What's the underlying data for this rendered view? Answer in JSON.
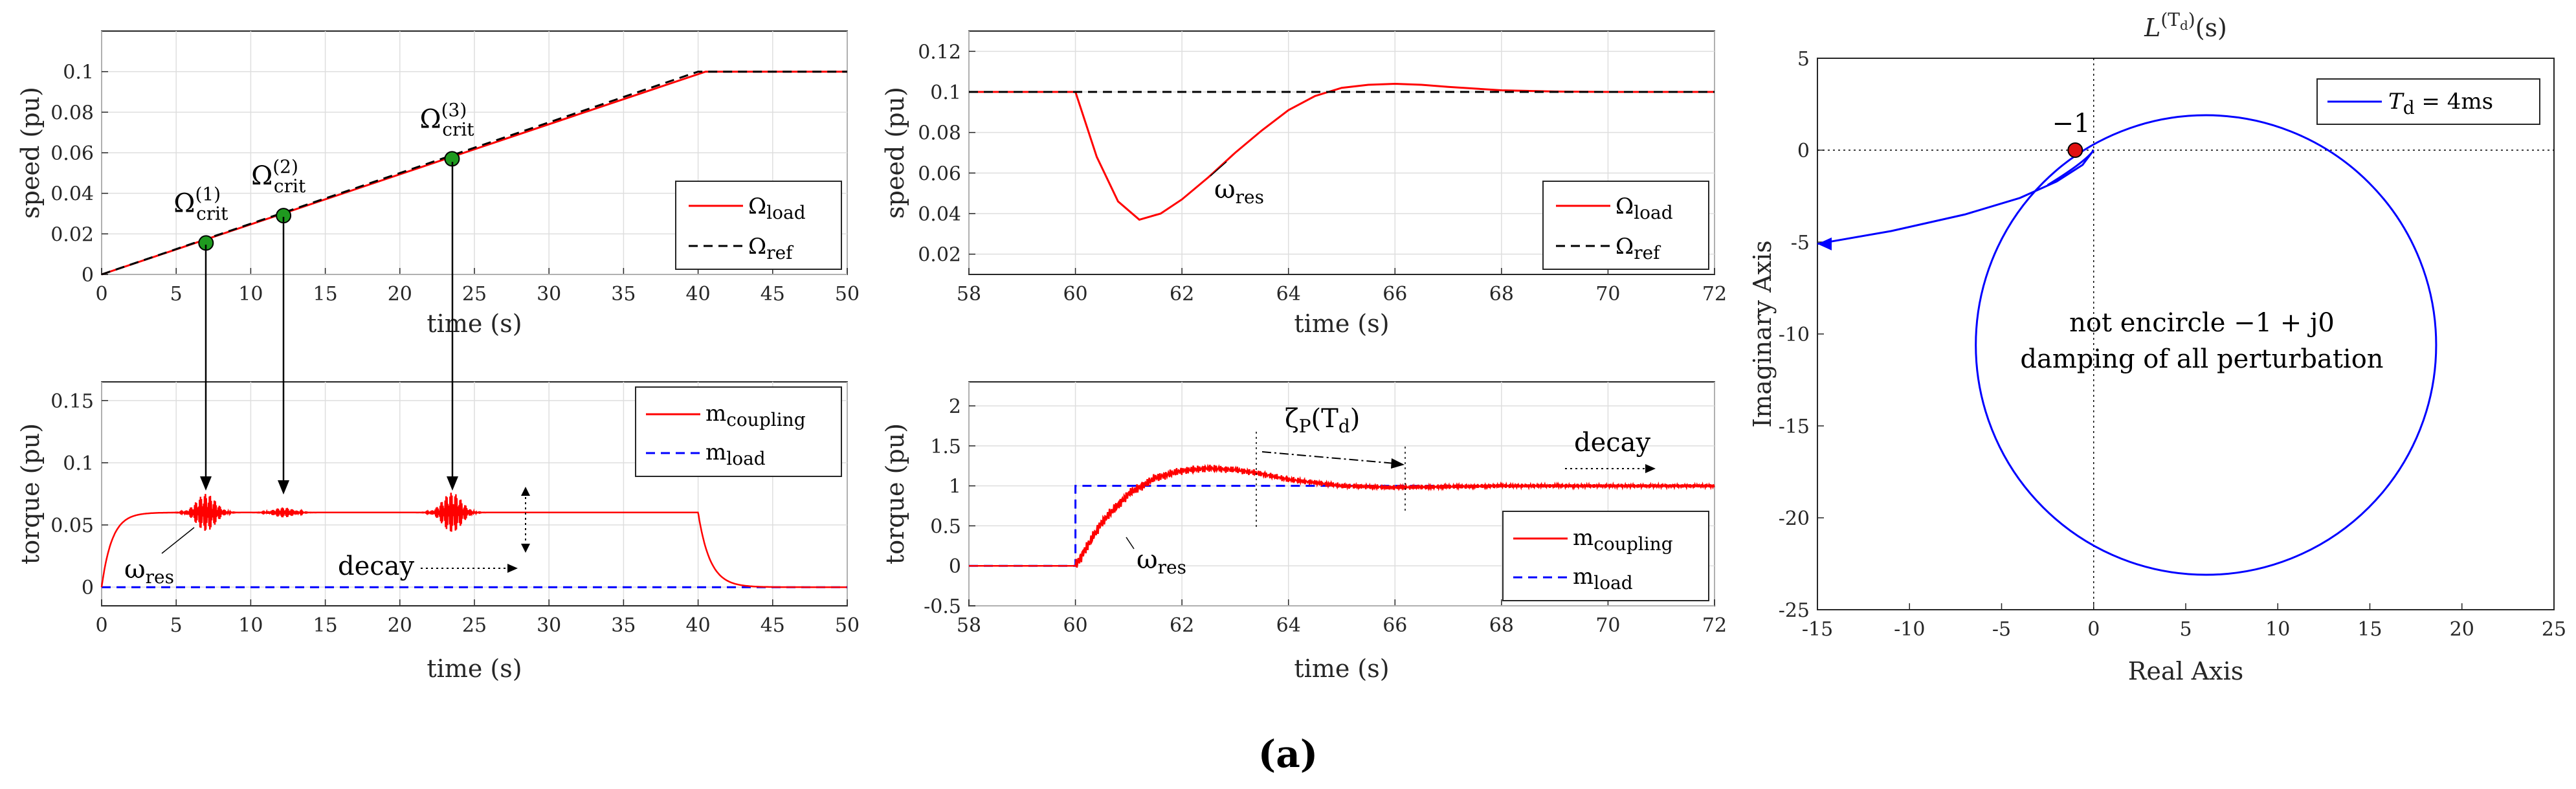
{
  "figure": {
    "caption": "(a)"
  },
  "chart_data": [
    {
      "id": "p1",
      "type": "line",
      "xlabel": "time (s)",
      "ylabel": "speed (pu)",
      "xlim": [
        0,
        50
      ],
      "ylim": [
        0,
        0.12
      ],
      "xticks": [
        0,
        5,
        10,
        15,
        20,
        25,
        30,
        35,
        40,
        45,
        50
      ],
      "yticks": [
        0,
        0.02,
        0.04,
        0.06,
        0.08,
        0.1
      ],
      "grid": true,
      "legend_position": "lower-right",
      "series": [
        {
          "name": "Ω_load",
          "color": "#ff0000",
          "style": "solid",
          "x": [
            0,
            40.5,
            50
          ],
          "y": [
            0,
            0.1,
            0.1
          ]
        },
        {
          "name": "Ω_ref",
          "color": "#000000",
          "style": "dashed",
          "x": [
            0,
            40,
            50
          ],
          "y": [
            0,
            0.1,
            0.1
          ]
        }
      ],
      "points": [
        {
          "x": 7,
          "y": 0.0155,
          "label": "Ω",
          "sub": "crit",
          "sup": "(1)"
        },
        {
          "x": 12.2,
          "y": 0.029,
          "label": "Ω",
          "sub": "crit",
          "sup": "(2)"
        },
        {
          "x": 23.5,
          "y": 0.057,
          "label": "Ω",
          "sub": "crit",
          "sup": "(3)"
        }
      ],
      "marker_color": "#1f9a1f"
    },
    {
      "id": "p2",
      "type": "line",
      "xlabel": "time (s)",
      "ylabel": "torque (pu)",
      "xlim": [
        0,
        50
      ],
      "ylim": [
        -0.015,
        0.165
      ],
      "xticks": [
        0,
        5,
        10,
        15,
        20,
        25,
        30,
        35,
        40,
        45,
        50
      ],
      "yticks": [
        0,
        0.05,
        0.1,
        0.15
      ],
      "grid": true,
      "legend_position": "top-right",
      "series": [
        {
          "name": "m_coupling",
          "color": "#ff0000",
          "style": "solid",
          "steady": 0.06,
          "bursts": [
            {
              "t": 7,
              "amp": 0.015
            },
            {
              "t": 12.2,
              "amp": 0.004
            },
            {
              "t": 23.5,
              "amp": 0.016
            }
          ]
        },
        {
          "name": "m_load",
          "color": "#0000ff",
          "style": "dashed",
          "x": [
            0,
            50
          ],
          "y": [
            0,
            0
          ]
        }
      ],
      "annotations": {
        "omega_res": "ω",
        "omega_res_sub": "res",
        "decay": "decay"
      }
    },
    {
      "id": "p3",
      "type": "line",
      "xlabel": "time (s)",
      "ylabel": "speed (pu)",
      "xlim": [
        58,
        72
      ],
      "ylim": [
        0.01,
        0.13
      ],
      "xticks": [
        58,
        60,
        62,
        64,
        66,
        68,
        70,
        72
      ],
      "yticks": [
        0.02,
        0.04,
        0.06,
        0.08,
        0.1,
        0.12
      ],
      "grid": true,
      "legend_position": "lower-right",
      "series": [
        {
          "name": "Ω_load",
          "color": "#ff0000",
          "style": "solid",
          "x": [
            58,
            60,
            60.4,
            60.8,
            61.2,
            61.6,
            62,
            62.5,
            63,
            63.5,
            64,
            64.5,
            65,
            65.5,
            66,
            66.5,
            67,
            68,
            69,
            70,
            72
          ],
          "y": [
            0.1,
            0.1,
            0.068,
            0.046,
            0.037,
            0.04,
            0.047,
            0.058,
            0.07,
            0.081,
            0.091,
            0.098,
            0.102,
            0.1035,
            0.104,
            0.1035,
            0.1025,
            0.1008,
            0.1002,
            0.1,
            0.1
          ]
        },
        {
          "name": "Ω_ref",
          "color": "#000000",
          "style": "dashed",
          "x": [
            58,
            72
          ],
          "y": [
            0.1,
            0.1
          ]
        }
      ],
      "annotations": {
        "omega_res": "ω",
        "omega_res_sub": "res"
      }
    },
    {
      "id": "p4",
      "type": "line",
      "xlabel": "time (s)",
      "ylabel": "torque (pu)",
      "xlim": [
        58,
        72
      ],
      "ylim": [
        -0.5,
        2.3
      ],
      "xticks": [
        58,
        60,
        62,
        64,
        66,
        68,
        70,
        72
      ],
      "yticks": [
        -0.5,
        0,
        0.5,
        1,
        1.5,
        2
      ],
      "grid": true,
      "legend_position": "lower-right",
      "series": [
        {
          "name": "m_coupling",
          "color": "#ff0000",
          "style": "solid",
          "x": [
            58,
            60,
            60.5,
            61,
            61.5,
            62,
            62.5,
            63,
            63.5,
            64,
            65,
            66,
            67,
            68,
            72
          ],
          "y": [
            0,
            0,
            0.55,
            0.9,
            1.1,
            1.19,
            1.22,
            1.2,
            1.15,
            1.08,
            1.0,
            0.98,
            0.99,
            1.0,
            1.0
          ]
        },
        {
          "name": "m_load",
          "color": "#0000ff",
          "style": "dashed",
          "x": [
            58,
            60,
            60,
            72
          ],
          "y": [
            0,
            0,
            1,
            1
          ]
        }
      ],
      "annotations": {
        "zeta": "ζ",
        "zeta_sub": "P",
        "zeta_arg": "(T",
        "zeta_arg_sub": "d",
        "zeta_close": ")",
        "decay": "decay",
        "omega_res": "ω",
        "omega_res_sub": "res"
      }
    },
    {
      "id": "p5",
      "type": "line",
      "title": "L",
      "title_sup": "(T",
      "title_sup_sub": "d",
      "title_sup_close": ")",
      "title_arg": "(s)",
      "xlabel": "Real Axis",
      "ylabel": "Imaginary Axis",
      "xlim": [
        -15,
        25
      ],
      "ylim": [
        -25,
        5
      ],
      "xticks": [
        -15,
        -10,
        -5,
        0,
        5,
        10,
        15,
        20,
        25
      ],
      "yticks": [
        -25,
        -20,
        -15,
        -10,
        -5,
        0,
        5
      ],
      "grid": false,
      "legend_position": "top-right",
      "series": [
        {
          "name": "T_d = 4ms",
          "color": "#0000ff",
          "style": "solid",
          "circle": {
            "cx": 6.1,
            "cy": -10.6,
            "r": 12.5
          },
          "tail": {
            "x": [
              -15,
              -11,
              -7,
              -4,
              -2,
              -0.6,
              0
            ],
            "y": [
              -5.1,
              -4.4,
              -3.5,
              -2.6,
              -1.7,
              -0.8,
              0
            ]
          }
        }
      ],
      "critical_point": {
        "x": -1,
        "y": 0,
        "label": "−1",
        "color": "#e01010"
      },
      "annotations": {
        "line1": "not encircle −1 + j0",
        "line2": "damping of all perturbation"
      },
      "legend_label_main": "T",
      "legend_label_sub": "d",
      "legend_label_rest": " = 4ms"
    }
  ]
}
